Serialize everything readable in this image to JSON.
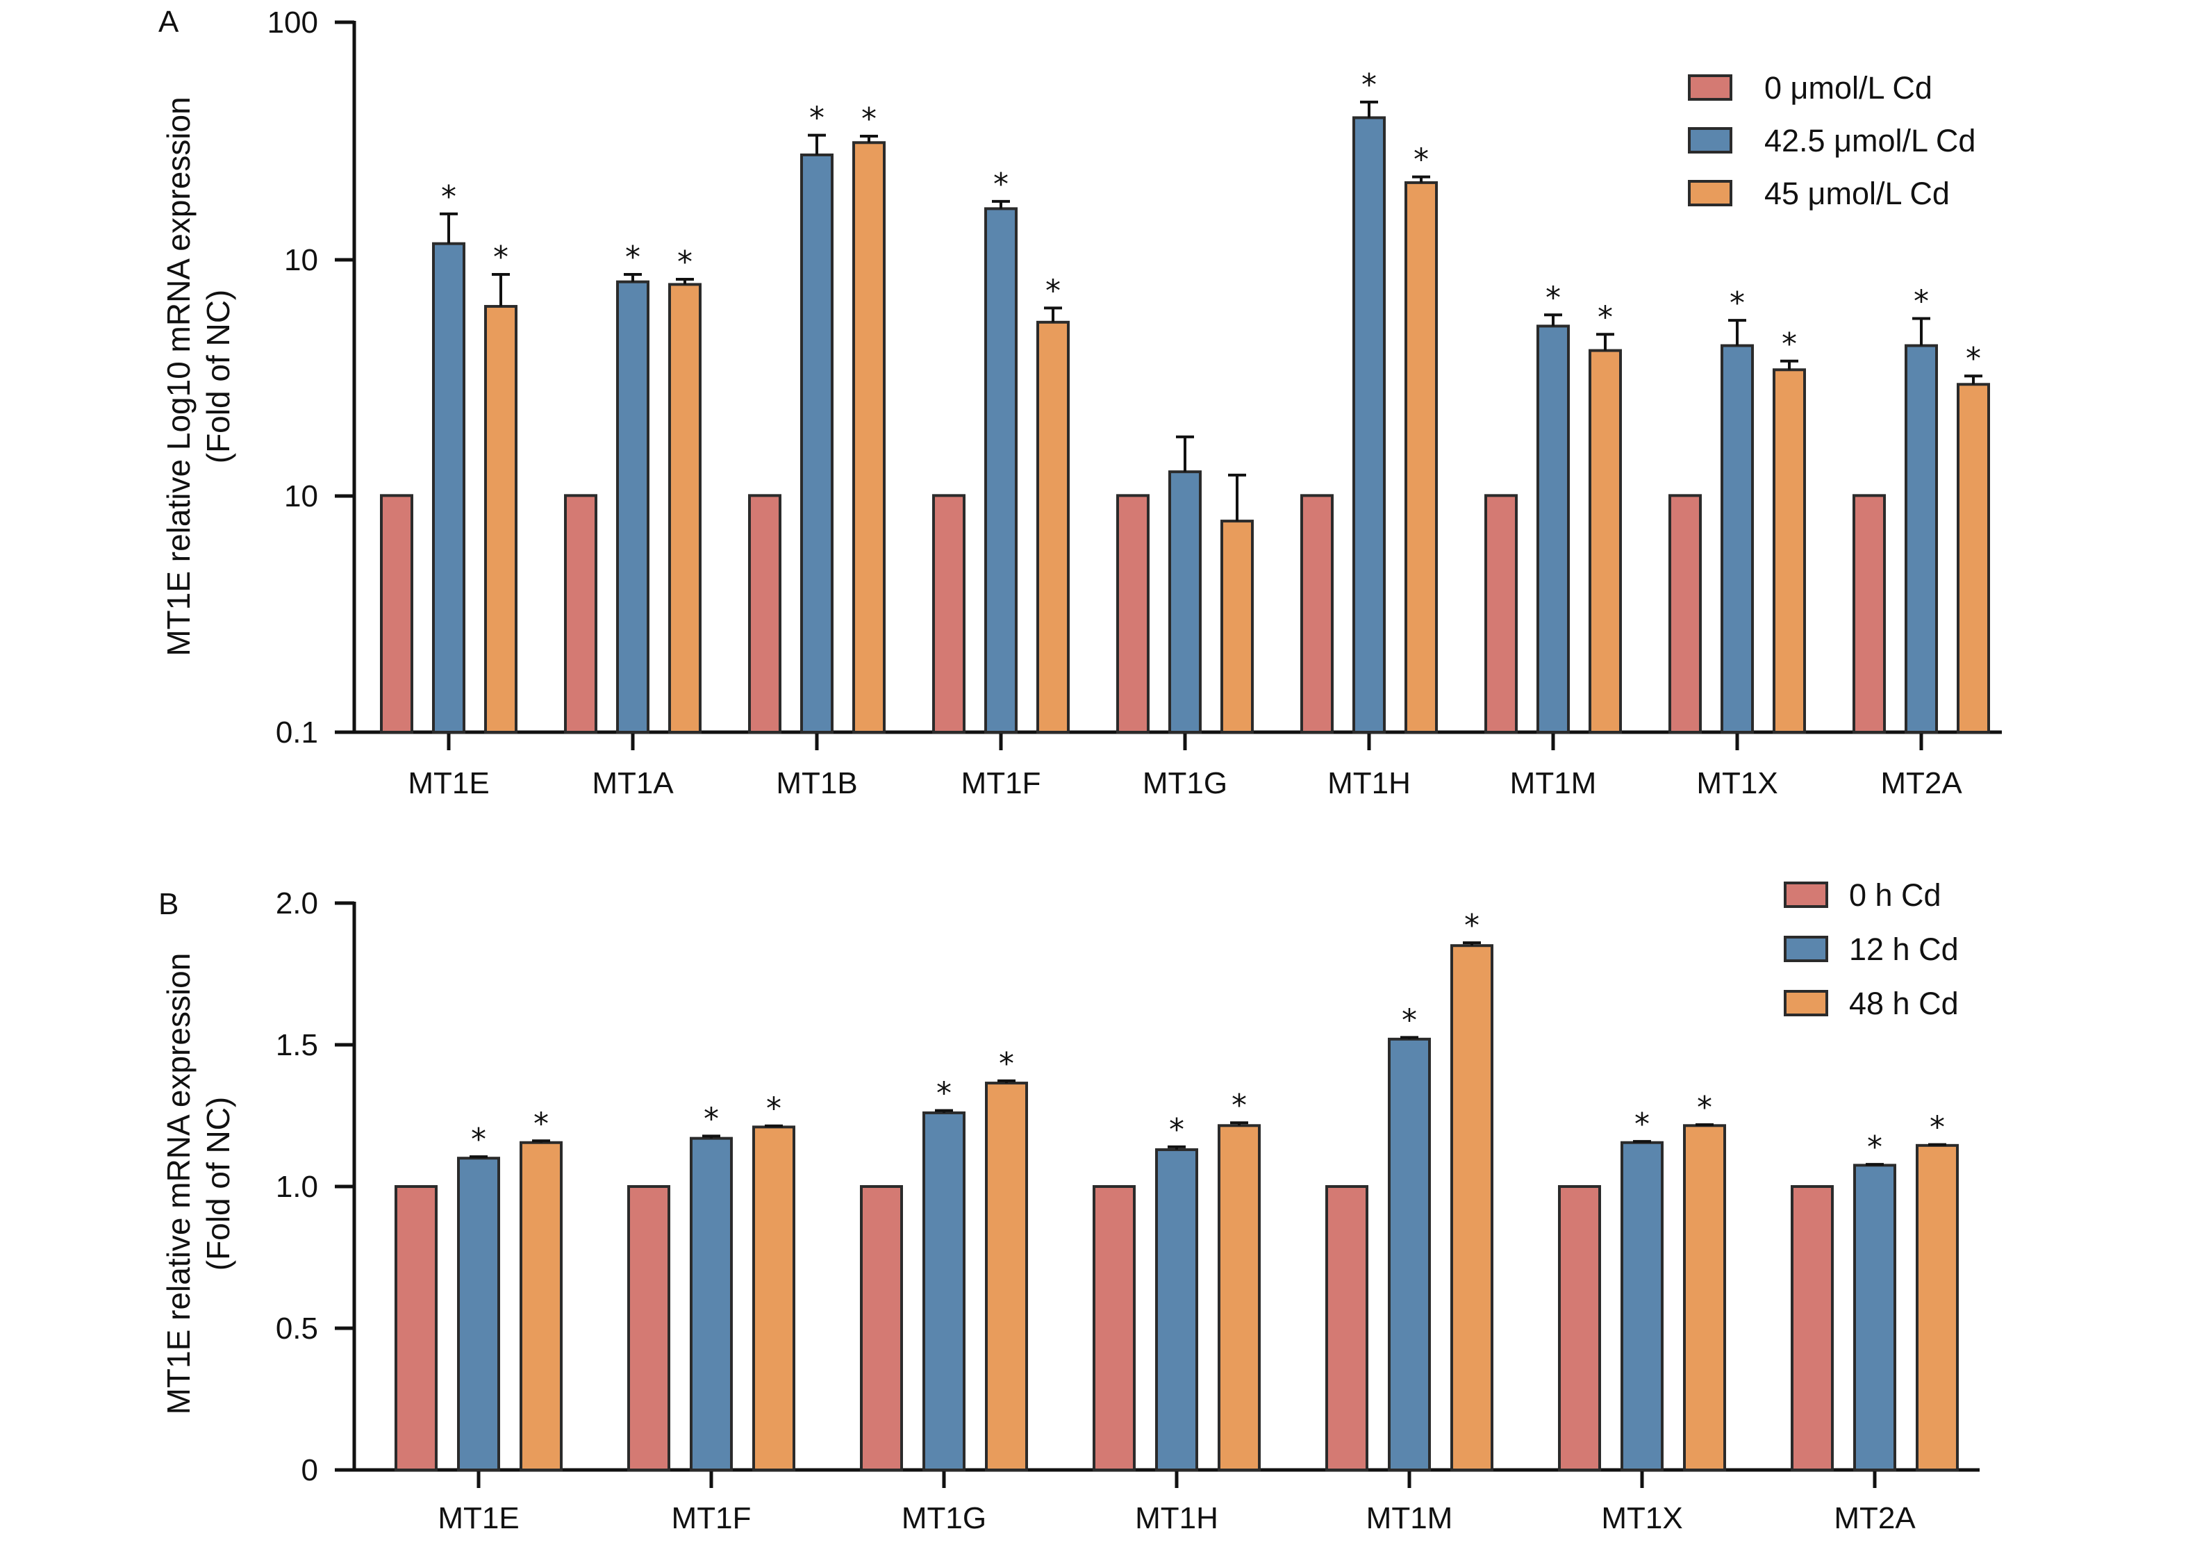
{
  "chart_data": [
    {
      "type": "bar",
      "panel_label": "A",
      "ylabel_line1": "MT1E relative Log10 mRNA expression",
      "ylabel_line2": "(Fold of NC)",
      "yscale": "log",
      "ylim": [
        0.1,
        100
      ],
      "y_tick_labels": [
        "0.1",
        "10",
        "10",
        "100"
      ],
      "categories": [
        "MT1E",
        "MT1A",
        "MT1B",
        "MT1F",
        "MT1G",
        "MT1H",
        "MT1M",
        "MT1X",
        "MT2A"
      ],
      "series": [
        {
          "name": "0 μmol/L Cd",
          "color": "#d47a73",
          "values": [
            1,
            1,
            1,
            1,
            1,
            1,
            1,
            1,
            1
          ],
          "errors": [
            0,
            0,
            0,
            0,
            0,
            0,
            0,
            0,
            0
          ],
          "stars": [
            false,
            false,
            false,
            false,
            false,
            false,
            false,
            false,
            false
          ]
        },
        {
          "name": "42.5 μmol/L Cd",
          "color": "#5b86ad",
          "values": [
            11.6,
            8.0,
            27.5,
            16.3,
            1.26,
            39.5,
            5.2,
            4.3,
            4.3
          ],
          "errors": [
            3.9,
            0.6,
            5.8,
            1.2,
            0.51,
            6.5,
            0.6,
            1.2,
            1.3
          ],
          "stars": [
            true,
            true,
            true,
            true,
            false,
            true,
            true,
            true,
            true
          ]
        },
        {
          "name": "45 μmol/L Cd",
          "color": "#e89c5c",
          "values": [
            6.3,
            7.8,
            31.0,
            5.4,
            0.78,
            21.0,
            4.1,
            3.4,
            2.95
          ],
          "errors": [
            2.3,
            0.4,
            2.0,
            0.8,
            0.44,
            1.2,
            0.7,
            0.3,
            0.25
          ],
          "stars": [
            true,
            true,
            true,
            true,
            false,
            true,
            true,
            true,
            true
          ]
        }
      ],
      "legend_position": "top-right"
    },
    {
      "type": "bar",
      "panel_label": "B",
      "ylabel_line1": "MT1E relative mRNA expression",
      "ylabel_line2": "(Fold of NC)",
      "yscale": "linear",
      "ylim": [
        0,
        2.0
      ],
      "y_tick_labels": [
        "0",
        "0.5",
        "1.0",
        "1.5",
        "2.0"
      ],
      "categories": [
        "MT1E",
        "MT1F",
        "MT1G",
        "MT1H",
        "MT1M",
        "MT1X",
        "MT2A"
      ],
      "series": [
        {
          "name": "0 h Cd",
          "color": "#d47a73",
          "values": [
            1.0,
            1.0,
            1.0,
            1.0,
            1.0,
            1.0,
            1.0
          ],
          "errors": [
            0,
            0,
            0,
            0,
            0,
            0,
            0
          ],
          "stars": [
            false,
            false,
            false,
            false,
            false,
            false,
            false
          ]
        },
        {
          "name": "12 h Cd",
          "color": "#5b86ad",
          "values": [
            1.1,
            1.17,
            1.26,
            1.13,
            1.52,
            1.155,
            1.075
          ],
          "errors": [
            0.005,
            0.008,
            0.008,
            0.01,
            0.006,
            0.004,
            0.003
          ],
          "stars": [
            true,
            true,
            true,
            true,
            true,
            true,
            true
          ]
        },
        {
          "name": "48 h Cd",
          "color": "#e89c5c",
          "values": [
            1.155,
            1.21,
            1.365,
            1.215,
            1.85,
            1.215,
            1.145
          ],
          "errors": [
            0.006,
            0.004,
            0.008,
            0.01,
            0.01,
            0.003,
            0.003
          ],
          "stars": [
            true,
            true,
            true,
            true,
            true,
            true,
            true
          ]
        }
      ],
      "legend_position": "top-right"
    }
  ]
}
